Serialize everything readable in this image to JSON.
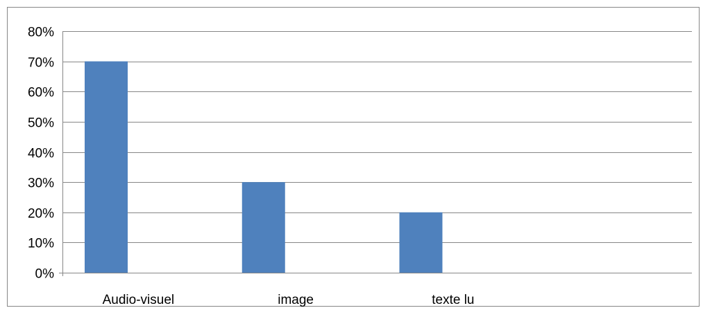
{
  "chart_data": {
    "type": "bar",
    "categories": [
      "Audio-visuel",
      "image",
      "texte lu",
      ""
    ],
    "values": [
      0.7,
      0.3,
      0.2,
      null
    ],
    "y_tick_labels": [
      "0%",
      "10%",
      "20%",
      "30%",
      "40%",
      "50%",
      "60%",
      "70%",
      "80%"
    ],
    "ylim": [
      0,
      0.8
    ],
    "y_format": "percent",
    "grid": true,
    "legend": "none",
    "title": "",
    "xlabel": "",
    "ylabel": "",
    "colors": {
      "bar": "#4f81bd",
      "grid": "#868686",
      "frame": "#868686"
    }
  }
}
